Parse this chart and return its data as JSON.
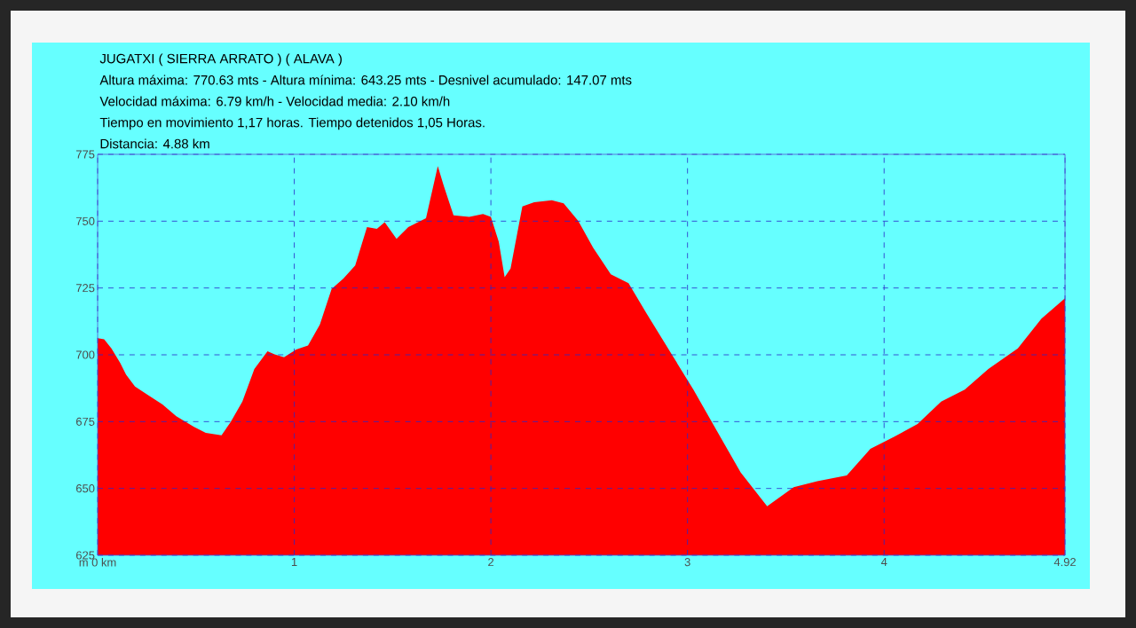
{
  "chart_data": {
    "type": "area",
    "title": "JUGATXI ( SIERRA ARRATO ) ( ALAVA )",
    "annotations": [
      "Altura máxima: 770.63 mts - Altura mínima: 643.25 mts - Desnivel acumulado: 147.07 mts",
      "Velocidad máxima: 6.79 km/h - Velocidad media: 2.10 km/h",
      "Tiempo en movimiento 1,17  horas. Tiempo detenidos 1,05 Horas.",
      "Distancia: 4.88 km"
    ],
    "x": [
      0,
      0.033,
      0.07,
      0.115,
      0.145,
      0.19,
      0.25,
      0.33,
      0.4,
      0.49,
      0.55,
      0.63,
      0.676,
      0.736,
      0.797,
      0.864,
      0.9,
      0.948,
      1.01,
      1.07,
      1.13,
      1.19,
      1.25,
      1.31,
      1.37,
      1.42,
      1.46,
      1.52,
      1.58,
      1.67,
      1.73,
      1.76,
      1.81,
      1.89,
      1.96,
      2.0,
      2.04,
      2.07,
      2.1,
      2.16,
      2.22,
      2.31,
      2.37,
      2.445,
      2.52,
      2.61,
      2.7,
      2.79,
      2.91,
      3.03,
      3.15,
      3.27,
      3.405,
      3.54,
      3.66,
      3.81,
      3.93,
      4.05,
      4.17,
      4.29,
      4.41,
      4.53,
      4.68,
      4.8,
      4.92
    ],
    "values": [
      706.2,
      705.8,
      702.4,
      696.9,
      692.5,
      688.1,
      685.2,
      681.4,
      677.0,
      673.0,
      670.8,
      669.9,
      674.8,
      682.5,
      694.7,
      701.3,
      700.2,
      699.1,
      702.0,
      703.5,
      711.3,
      724.6,
      728.5,
      733.4,
      747.8,
      747.1,
      749.6,
      743.4,
      747.8,
      751.1,
      770.6,
      763.3,
      752.2,
      751.6,
      752.7,
      751.6,
      742.3,
      729.0,
      732.3,
      755.5,
      757.1,
      757.8,
      756.7,
      750.0,
      740.1,
      730.1,
      726.8,
      715.7,
      701.3,
      687.0,
      671.5,
      656.0,
      643.3,
      650.5,
      652.7,
      654.9,
      664.8,
      669.3,
      674.1,
      682.5,
      687.0,
      694.7,
      702.4,
      713.5,
      721.2
    ],
    "color": "#ff0000",
    "xlim": [
      0,
      4.92
    ],
    "ylim": [
      625,
      775
    ],
    "xticks": [
      {
        "value": 0,
        "label": "m 0 km"
      },
      1,
      2,
      3,
      4,
      4.92
    ],
    "yticks": [
      625,
      650,
      675,
      700,
      725,
      750,
      775
    ],
    "grid": true,
    "line_style": "dashed"
  }
}
